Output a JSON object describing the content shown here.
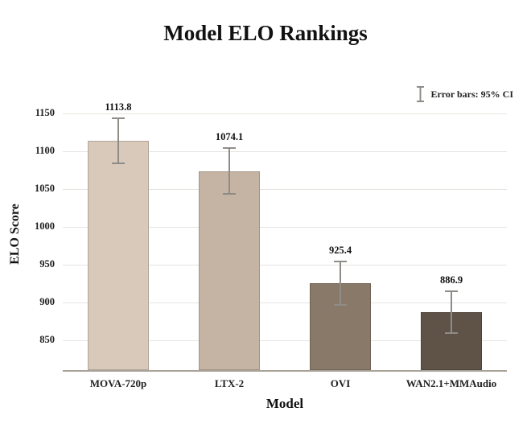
{
  "title": "Model ELO Rankings",
  "legend": {
    "label": "Error bars: 95% CI",
    "icon": "error-bar-glyph",
    "color": "#8f8c88"
  },
  "axes": {
    "xlabel": "Model",
    "ylabel": "ELO Score"
  },
  "chart_data": {
    "type": "bar",
    "title": "Model ELO Rankings",
    "xlabel": "Model",
    "ylabel": "ELO Score",
    "categories": [
      "MOVA-720p",
      "LTX-2",
      "OVI",
      "WAN2.1+MMAudio"
    ],
    "values": [
      1113.8,
      1074.1,
      925.4,
      886.9
    ],
    "ci": [
      30,
      30,
      29,
      28
    ],
    "value_labels": [
      "1113.8",
      "1074.1",
      "925.4",
      "886.9"
    ],
    "bar_colors": [
      "#d9c9bb",
      "#c5b4a3",
      "#897969",
      "#5f5347"
    ],
    "error_bar_color": "#8f8c88",
    "ylim": [
      810,
      1160
    ],
    "yticks": [
      850,
      900,
      950,
      1000,
      1050,
      1100,
      1150
    ],
    "grid": true,
    "legend_label": "Error bars: 95% CI",
    "legend_position": "top-right"
  }
}
